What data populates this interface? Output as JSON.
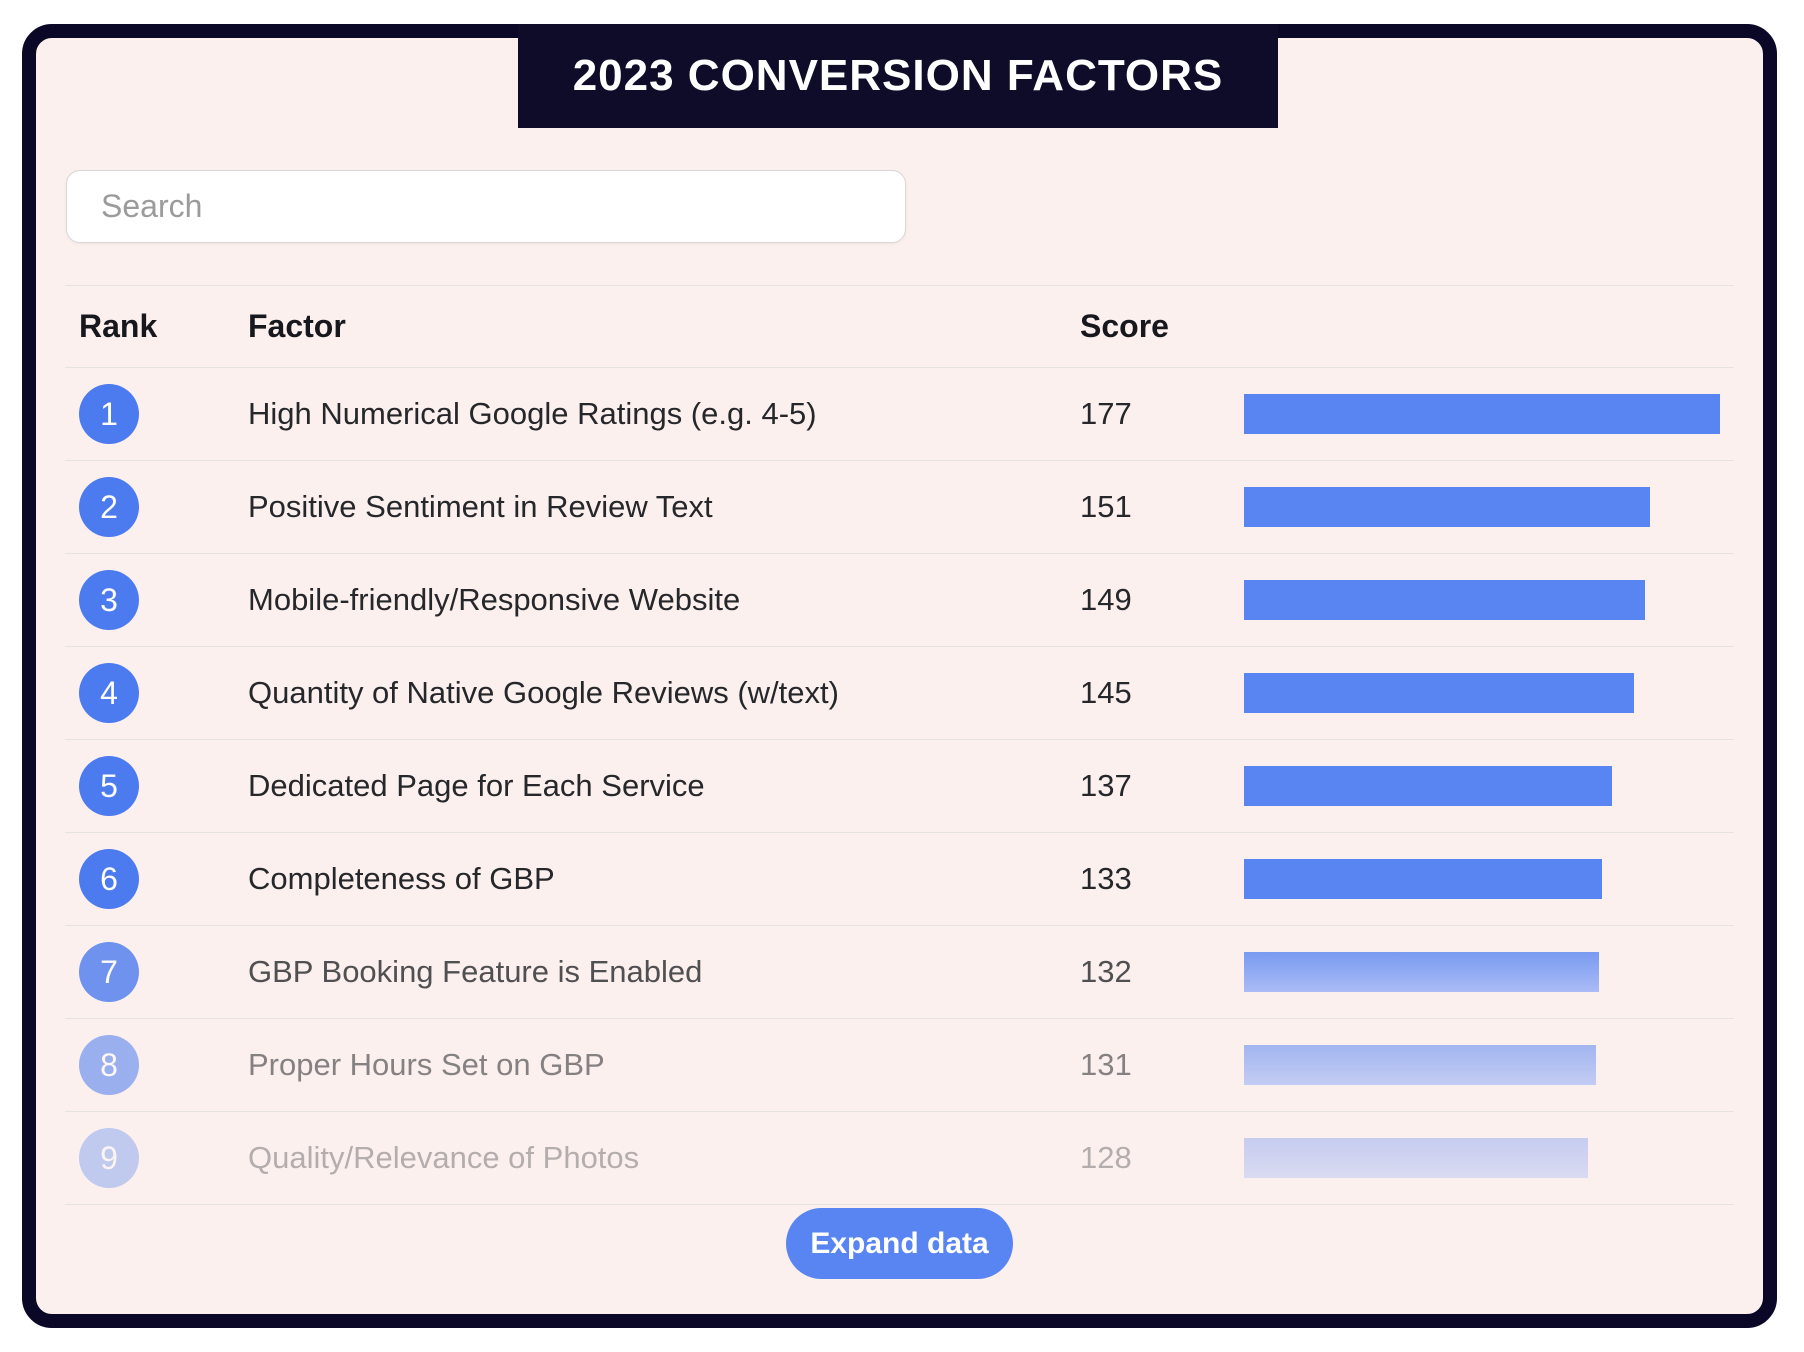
{
  "title": "2023 CONVERSION FACTORS",
  "search": {
    "placeholder": "Search"
  },
  "table": {
    "headers": {
      "rank": "Rank",
      "factor": "Factor",
      "score": "Score"
    },
    "rows": [
      {
        "rank": "1",
        "factor": "High Numerical Google Ratings (e.g. 4-5)",
        "score": 177
      },
      {
        "rank": "2",
        "factor": "Positive Sentiment in Review Text",
        "score": 151
      },
      {
        "rank": "3",
        "factor": "Mobile-friendly/Responsive Website",
        "score": 149
      },
      {
        "rank": "4",
        "factor": "Quantity of Native Google Reviews (w/text)",
        "score": 145
      },
      {
        "rank": "5",
        "factor": "Dedicated Page for Each Service",
        "score": 137
      },
      {
        "rank": "6",
        "factor": "Completeness of GBP",
        "score": 133
      },
      {
        "rank": "7",
        "factor": "GBP Booking Feature is Enabled",
        "score": 132
      },
      {
        "rank": "8",
        "factor": "Proper Hours Set on GBP",
        "score": 131
      },
      {
        "rank": "9",
        "factor": "Quality/Relevance of Photos",
        "score": 128
      }
    ]
  },
  "footer": {
    "expand_label": "Expand data"
  },
  "colors": {
    "bar_blue": "#5885f2",
    "badge_blue": "#4c7bef",
    "navy": "#0f0c29",
    "card_bg": "#fbf0ee"
  },
  "chart_data": {
    "type": "bar",
    "orientation": "horizontal",
    "title": "2023 CONVERSION FACTORS",
    "categories": [
      "High Numerical Google Ratings (e.g. 4-5)",
      "Positive Sentiment in Review Text",
      "Mobile-friendly/Responsive Website",
      "Quantity of Native Google Reviews (w/text)",
      "Dedicated Page for Each Service",
      "Completeness of GBP",
      "GBP Booking Feature is Enabled",
      "Proper Hours Set on GBP",
      "Quality/Relevance of Photos"
    ],
    "values": [
      177,
      151,
      149,
      145,
      137,
      133,
      132,
      131,
      128
    ],
    "xlabel": "Score",
    "xlim": [
      0,
      177
    ],
    "legend": false,
    "grid": false
  }
}
